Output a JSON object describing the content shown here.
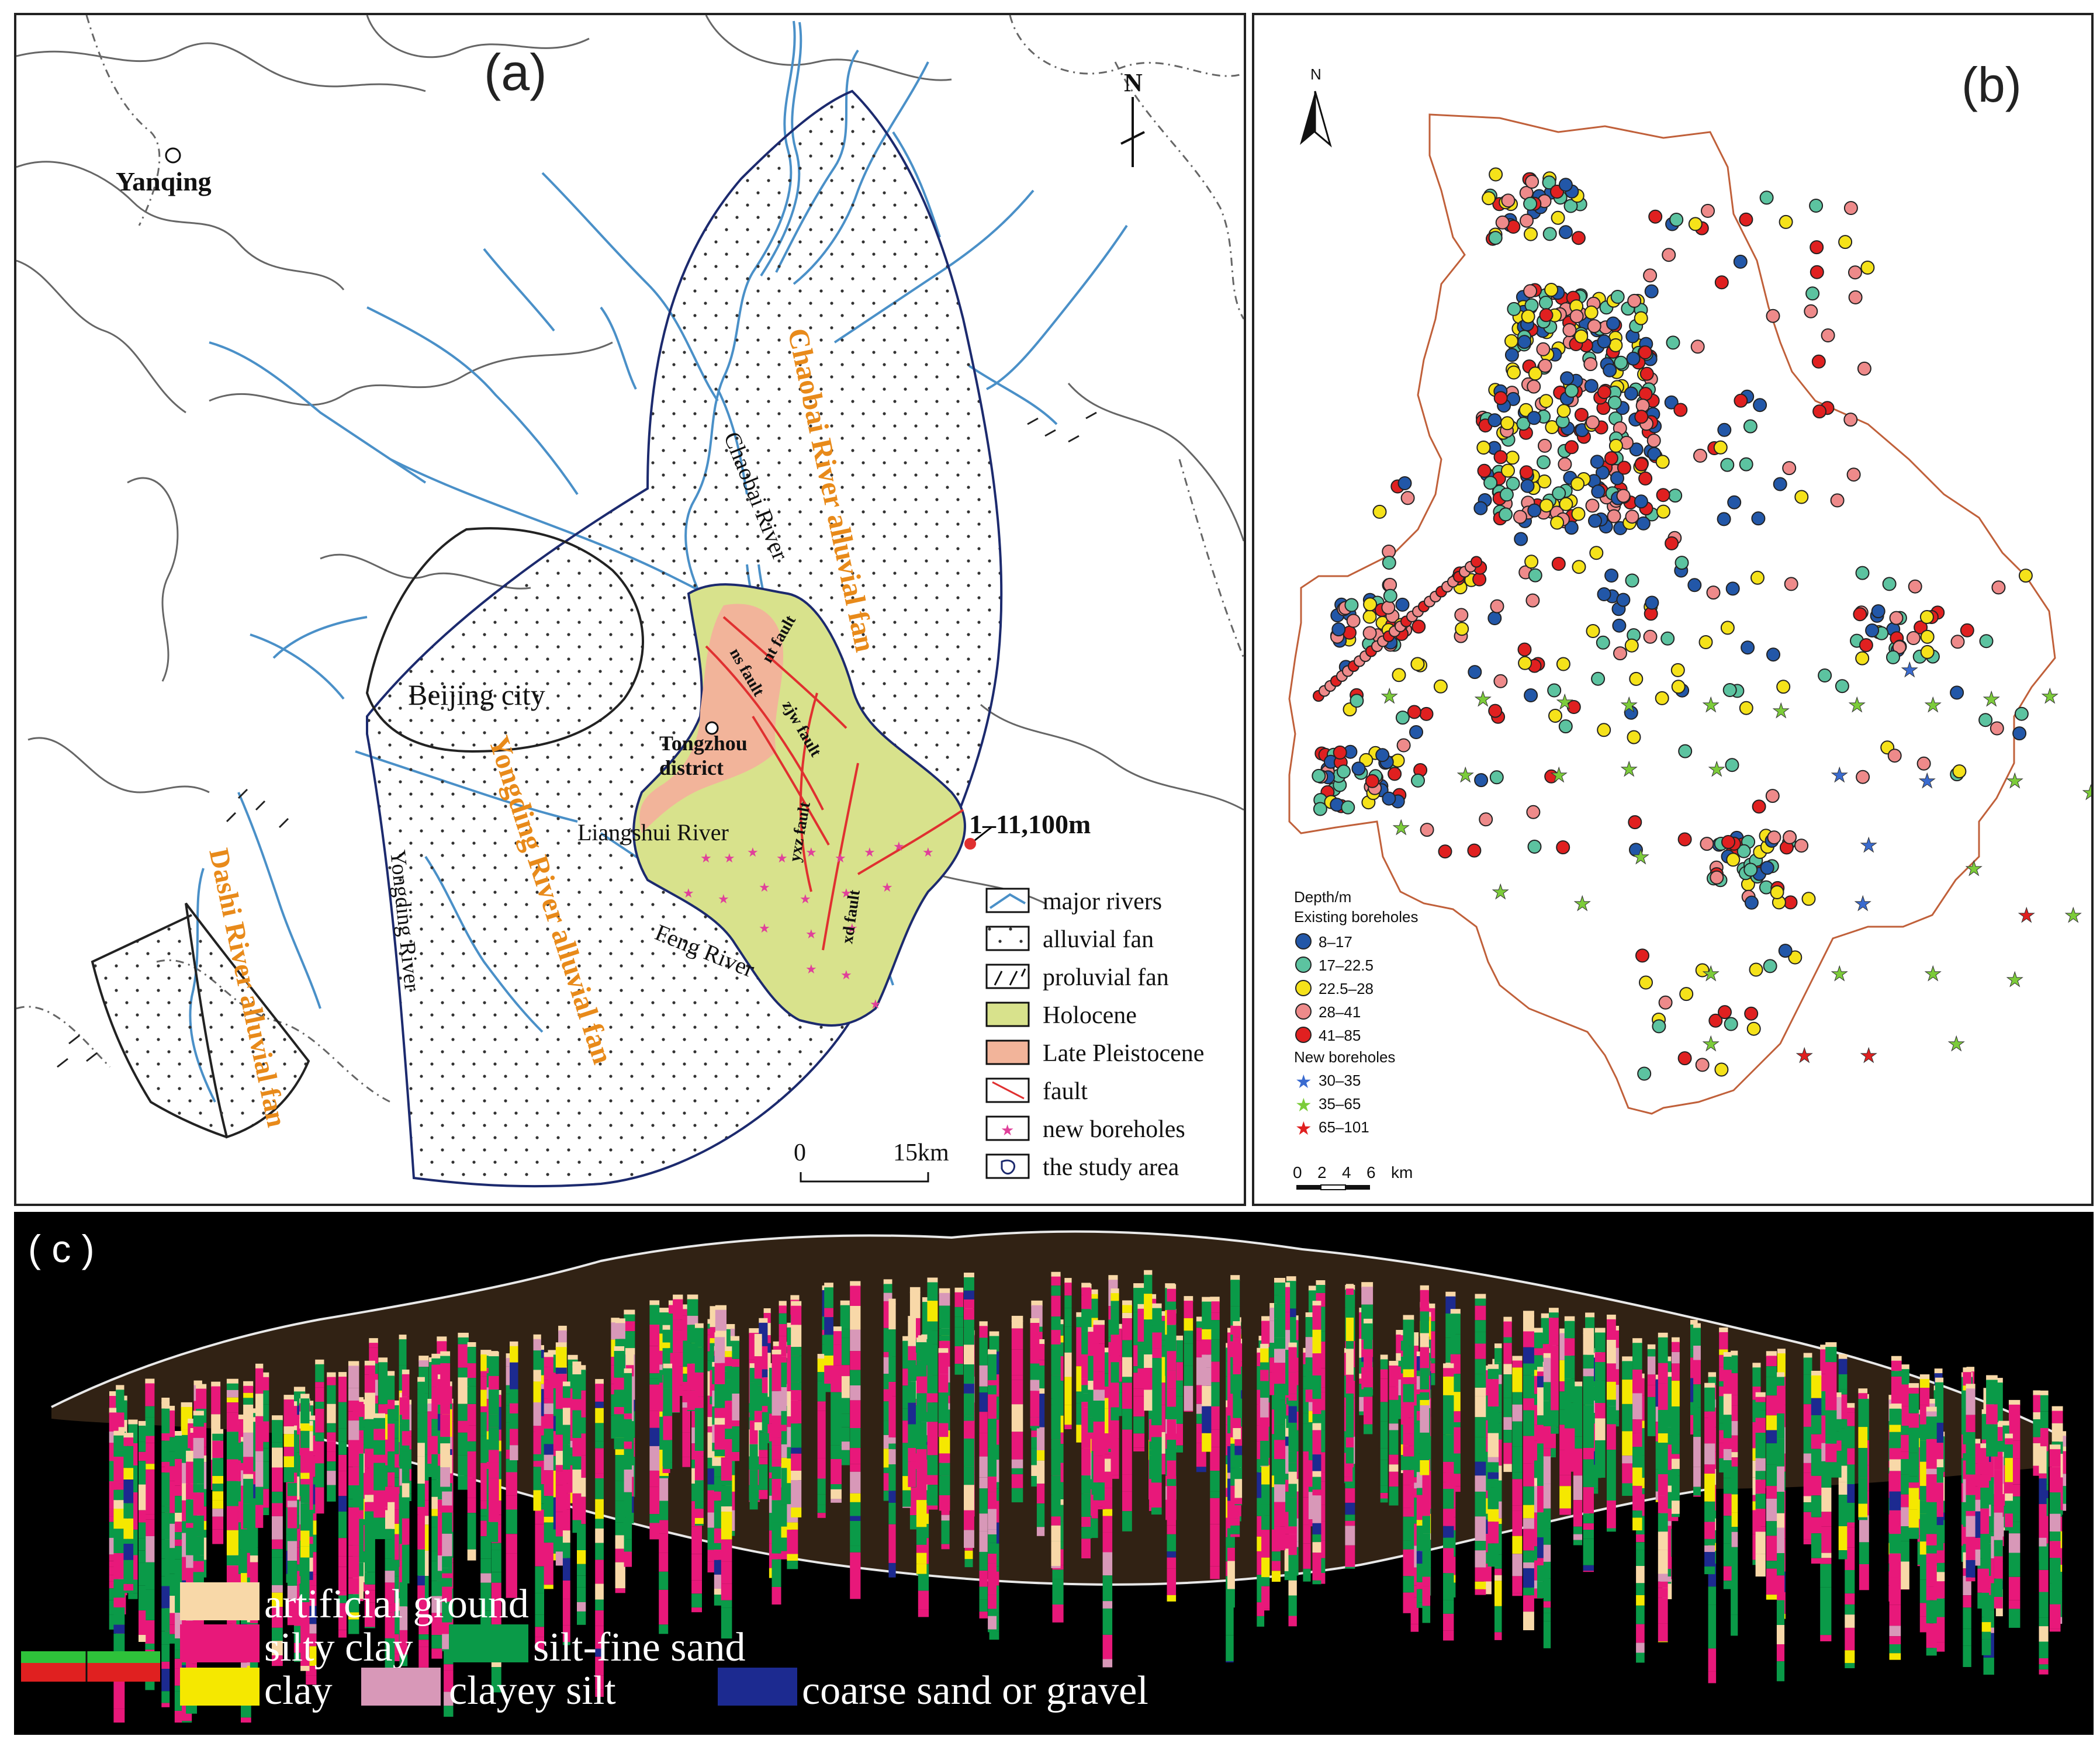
{
  "panel_a": {
    "label": "(a)",
    "places": {
      "yanqing": "Yanqing",
      "beijing": "Beijing city",
      "tongzhou_1": "Tongzhou",
      "tongzhou_2": "district"
    },
    "fans": {
      "chaobai": "Chaobai River alluvial fan",
      "yongding": "Yongding River alluvial fan",
      "dashi": "Dashi River alluvial fan"
    },
    "rivers": {
      "chaobai": "Chaobai River",
      "liangshui": "Liangshui River",
      "yongding": "Yongding River",
      "feng": "Feng River"
    },
    "faults": [
      "nt fault",
      "ns fault",
      "zjw fault",
      "yxz fault",
      "xd fault"
    ],
    "callout": "1–11,100m",
    "north": "N",
    "scale": {
      "zero": "0",
      "end": "15km"
    },
    "legend": [
      {
        "key": "rivers",
        "label": "major rivers"
      },
      {
        "key": "alluvial",
        "label": "alluvial fan"
      },
      {
        "key": "proluvial",
        "label": "proluvial fan"
      },
      {
        "key": "holocene",
        "label": "Holocene",
        "color": "#d8e28c"
      },
      {
        "key": "pleistocene",
        "label": "Late Pleistocene",
        "color": "#f2b49a"
      },
      {
        "key": "fault",
        "label": "fault",
        "color": "#e03030"
      },
      {
        "key": "boreholes",
        "label": "new boreholes",
        "color": "#e0409a"
      },
      {
        "key": "study",
        "label": "the study area"
      }
    ],
    "colors": {
      "river": "#4a90c8",
      "fan_outline": "#1c2a6e",
      "holocene": "#d8e28c",
      "pleistocene": "#f2b49a",
      "fault": "#e03030",
      "borehole": "#e0409a",
      "fan_label": "#e88a1a"
    }
  },
  "panel_b": {
    "label": "(b)",
    "north": "N",
    "legend_title": "Depth/m",
    "existing_title": "Existing boreholes",
    "existing": [
      {
        "label": "8–17",
        "color": "#2257a8"
      },
      {
        "label": "17–22.5",
        "color": "#5cc3a0"
      },
      {
        "label": "22.5–28",
        "color": "#f5e21a"
      },
      {
        "label": "28–41",
        "color": "#ee8a8a"
      },
      {
        "label": "41–85",
        "color": "#e02020"
      }
    ],
    "new_title": "New boreholes",
    "new": [
      {
        "label": "30–35",
        "color": "#3a6bd0"
      },
      {
        "label": "35–65",
        "color": "#7ccc3a"
      },
      {
        "label": "65–101",
        "color": "#e02020"
      }
    ],
    "scale_ticks": [
      "0",
      "2",
      "4",
      "6"
    ],
    "scale_unit": "km",
    "boundary_color": "#c0603a"
  },
  "panel_c": {
    "label": "( c )",
    "legend": [
      {
        "label": "artificial ground",
        "color": "#f8d8a8"
      },
      {
        "label": "silty clay",
        "color": "#e8187a"
      },
      {
        "label": "silt-fine sand",
        "color": "#0a9a48"
      },
      {
        "label": "clay",
        "color": "#f5e800"
      },
      {
        "label": "clayey silt",
        "color": "#d898b8"
      },
      {
        "label": "coarse sand or gravel",
        "color": "#1c2a90"
      }
    ]
  }
}
